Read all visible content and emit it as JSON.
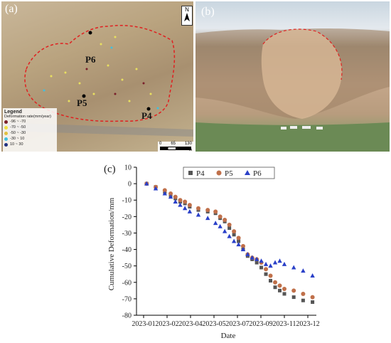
{
  "panel_a": {
    "label": "(a)",
    "points": [
      {
        "label": "P6"
      },
      {
        "label": "P5"
      },
      {
        "label": "P4"
      }
    ],
    "legend": {
      "title": "Legend",
      "subtitle": "Deformation rate(mm/year)",
      "classes": [
        {
          "range": "-96 ~ -70",
          "color": "#7a1f2a"
        },
        {
          "range": "-70 ~ -50",
          "color": "#f0e040"
        },
        {
          "range": "-50 ~ -30",
          "color": "#e0c040"
        },
        {
          "range": "-30 ~ 10",
          "color": "#40c0e0"
        },
        {
          "range": "10 ~ 30",
          "color": "#203080"
        }
      ]
    },
    "north_label": "N",
    "scale": {
      "ticks": [
        "0",
        "65",
        "130"
      ],
      "unit": "m"
    }
  },
  "panel_b": {
    "label": "(b)"
  },
  "chart_data": {
    "type": "scatter",
    "panel_label": "(c)",
    "xlabel": "Date",
    "ylabel": "Cumulative Deformation/mm",
    "x_tick_labels": [
      "2023-01",
      "2023-02",
      "2023-04",
      "2023-05",
      "2023-07",
      "2023-09",
      "2023-11",
      "2023-12"
    ],
    "y_ticks": [
      10,
      0,
      -10,
      -20,
      -30,
      -40,
      -50,
      -60,
      -70,
      -80
    ],
    "ylim": [
      -80,
      10
    ],
    "xlim": [
      "2023-01-01",
      "2023-12-15"
    ],
    "grid": false,
    "legend_position": "top-right",
    "series": [
      {
        "name": "P4",
        "marker": "square",
        "color": "#555555",
        "points": [
          [
            "2023-01-05",
            0
          ],
          [
            "2023-01-17",
            -2
          ],
          [
            "2023-01-29",
            -5
          ],
          [
            "2023-02-10",
            -7
          ],
          [
            "2023-02-22",
            -9
          ],
          [
            "2023-03-06",
            -11
          ],
          [
            "2023-03-18",
            -12
          ],
          [
            "2023-03-30",
            -14
          ],
          [
            "2023-04-11",
            -16
          ],
          [
            "2023-04-23",
            -17
          ],
          [
            "2023-05-05",
            -18
          ],
          [
            "2023-05-17",
            -21
          ],
          [
            "2023-05-29",
            -23
          ],
          [
            "2023-06-10",
            -27
          ],
          [
            "2023-06-22",
            -31
          ],
          [
            "2023-07-04",
            -35
          ],
          [
            "2023-07-16",
            -40
          ],
          [
            "2023-07-28",
            -44
          ],
          [
            "2023-08-09",
            -46
          ],
          [
            "2023-08-21",
            -48
          ],
          [
            "2023-09-02",
            -51
          ],
          [
            "2023-09-14",
            -55
          ],
          [
            "2023-09-26",
            -59
          ],
          [
            "2023-10-08",
            -63
          ],
          [
            "2023-10-20",
            -65
          ],
          [
            "2023-11-01",
            -67
          ],
          [
            "2023-11-13",
            -69
          ],
          [
            "2023-11-25",
            -71
          ],
          [
            "2023-12-07",
            -72
          ]
        ]
      },
      {
        "name": "P5",
        "marker": "circle",
        "color": "#c0704a",
        "points": [
          [
            "2023-01-05",
            0
          ],
          [
            "2023-01-17",
            -2
          ],
          [
            "2023-01-29",
            -4
          ],
          [
            "2023-02-10",
            -6
          ],
          [
            "2023-02-22",
            -8
          ],
          [
            "2023-03-06",
            -10
          ],
          [
            "2023-03-18",
            -11
          ],
          [
            "2023-03-30",
            -13
          ],
          [
            "2023-04-11",
            -15
          ],
          [
            "2023-04-23",
            -16
          ],
          [
            "2023-05-05",
            -17
          ],
          [
            "2023-05-17",
            -20
          ],
          [
            "2023-05-29",
            -22
          ],
          [
            "2023-06-10",
            -25
          ],
          [
            "2023-06-22",
            -29
          ],
          [
            "2023-07-04",
            -33
          ],
          [
            "2023-07-16",
            -38
          ],
          [
            "2023-07-28",
            -43
          ],
          [
            "2023-08-09",
            -45
          ],
          [
            "2023-08-21",
            -46
          ],
          [
            "2023-09-02",
            -48
          ],
          [
            "2023-09-14",
            -52
          ],
          [
            "2023-09-26",
            -56
          ],
          [
            "2023-10-08",
            -60
          ],
          [
            "2023-10-20",
            -62
          ],
          [
            "2023-11-01",
            -64
          ],
          [
            "2023-11-13",
            -65
          ],
          [
            "2023-11-25",
            -67
          ],
          [
            "2023-12-07",
            -69
          ]
        ]
      },
      {
        "name": "P6",
        "marker": "triangle",
        "color": "#2a40c8",
        "points": [
          [
            "2023-01-05",
            0
          ],
          [
            "2023-01-17",
            -3
          ],
          [
            "2023-01-29",
            -6
          ],
          [
            "2023-02-10",
            -8
          ],
          [
            "2023-02-22",
            -11
          ],
          [
            "2023-03-06",
            -13
          ],
          [
            "2023-03-18",
            -15
          ],
          [
            "2023-03-30",
            -17
          ],
          [
            "2023-04-11",
            -19
          ],
          [
            "2023-04-23",
            -21
          ],
          [
            "2023-05-05",
            -24
          ],
          [
            "2023-05-17",
            -26
          ],
          [
            "2023-05-29",
            -29
          ],
          [
            "2023-06-10",
            -32
          ],
          [
            "2023-06-22",
            -35
          ],
          [
            "2023-07-04",
            -37
          ],
          [
            "2023-07-16",
            -40
          ],
          [
            "2023-07-28",
            -43
          ],
          [
            "2023-08-09",
            -45
          ],
          [
            "2023-08-21",
            -46
          ],
          [
            "2023-09-02",
            -47
          ],
          [
            "2023-09-14",
            -49
          ],
          [
            "2023-09-26",
            -50
          ],
          [
            "2023-10-08",
            -48
          ],
          [
            "2023-10-20",
            -47
          ],
          [
            "2023-11-01",
            -49
          ],
          [
            "2023-11-13",
            -51
          ],
          [
            "2023-11-25",
            -53
          ],
          [
            "2023-12-07",
            -56
          ]
        ]
      }
    ]
  }
}
